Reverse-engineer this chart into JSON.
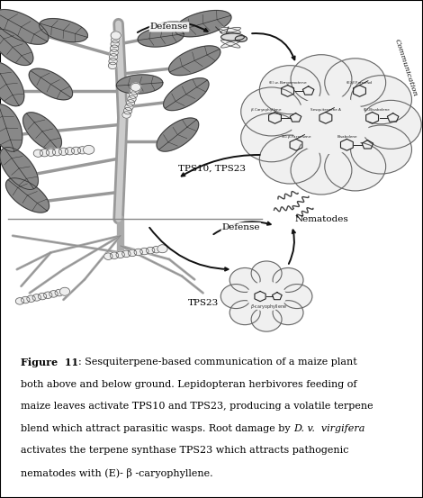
{
  "fig_width": 4.7,
  "fig_height": 5.53,
  "dpi": 100,
  "bg_color": "#ffffff",
  "border_color": "#000000",
  "stem_color": "#888888",
  "stem_highlight": "#bbbbbb",
  "leaf_color": "#777777",
  "leaf_edge": "#444444",
  "root_color": "#aaaaaa",
  "caterpillar_color": "#dddddd",
  "cloud_fill": "#f0f0f0",
  "cloud_edge": "#666666",
  "arrow_color": "#111111",
  "text_color": "#111111",
  "ground_color": "#888888",
  "label_defense_above": "Defense",
  "label_communication": "Communication",
  "label_tps10_tps23": "TPS10, TPS23",
  "label_defense_below": "Defense",
  "label_nematodes": "Nematodes",
  "label_tps23": "TPS23"
}
